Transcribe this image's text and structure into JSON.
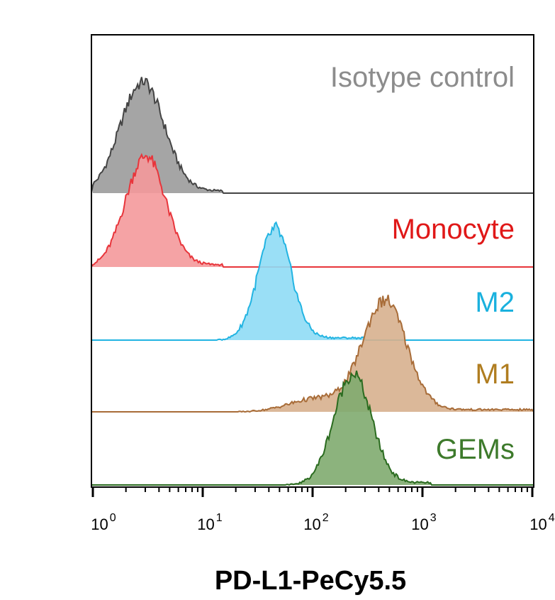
{
  "chart_data": {
    "type": "area",
    "xlabel": "PD-L1-PeCy5.5",
    "ylabel": "",
    "x_scale": "log",
    "xlim": [
      1,
      10000
    ],
    "x_ticks": [
      {
        "value": 1,
        "base": "10",
        "exp": "0"
      },
      {
        "value": 10,
        "base": "10",
        "exp": "1"
      },
      {
        "value": 100,
        "base": "10",
        "exp": "2"
      },
      {
        "value": 1000,
        "base": "10",
        "exp": "3"
      },
      {
        "value": 10000,
        "base": "10",
        "exp": "4"
      }
    ],
    "grid": false,
    "legend": "inline labels at right of each lane",
    "series": [
      {
        "name": "Isotype control",
        "color": "#8c8c8c",
        "fill": "#9b9b9b",
        "stroke": "#444444",
        "peak_x": 2.8,
        "sigma_log": 0.2,
        "tail_to": 15
      },
      {
        "name": "Monocyte",
        "color": "#e01818",
        "fill": "#f4999b",
        "stroke": "#e8353b",
        "peak_x": 3.0,
        "sigma_log": 0.18,
        "tail_to": 15
      },
      {
        "name": "M2",
        "color": "#1ab1de",
        "fill": "#8fdcf5",
        "stroke": "#22b4e2",
        "peak_x": 45,
        "sigma_log": 0.15,
        "tail_to": 300
      },
      {
        "name": "M1",
        "color": "#b07d20",
        "fill": "#d7b08e",
        "stroke": "#a86c38",
        "peak_x": 450,
        "sigma_log": 0.2,
        "shoulder_x": 110,
        "tail_to": 10000
      },
      {
        "name": "GEMs",
        "color": "#3d7a2b",
        "fill": "#7fab6f",
        "stroke": "#2a6b1f",
        "peak_x": 230,
        "sigma_log": 0.17,
        "tail_to": 1200
      }
    ]
  }
}
